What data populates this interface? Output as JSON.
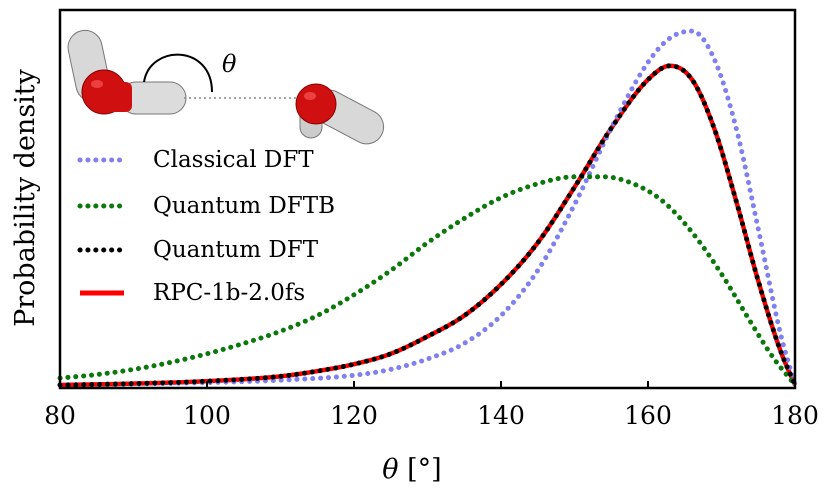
{
  "chart_data": {
    "type": "line",
    "title": "",
    "xlabel": "θ [°]",
    "xlabel_symbol": "θ",
    "xlabel_unit": " [°]",
    "ylabel": "Probability density",
    "xlim": [
      80,
      180
    ],
    "ylim": [
      0,
      1.0
    ],
    "xticks": [
      80,
      100,
      120,
      140,
      160,
      180
    ],
    "yticks_shown": false,
    "legend_position": "left",
    "inset_label": "θ",
    "series": [
      {
        "name": "Classical DFT",
        "style": "dotted",
        "color": "#8080f0",
        "x": [
          80,
          90,
          100,
          110,
          120,
          125,
          130,
          135,
          140,
          145,
          150,
          155,
          160,
          163,
          166,
          169,
          172,
          175,
          178,
          180
        ],
        "y": [
          0.0,
          0.003,
          0.007,
          0.014,
          0.028,
          0.045,
          0.075,
          0.12,
          0.2,
          0.33,
          0.52,
          0.74,
          0.93,
          1.0,
          1.02,
          0.94,
          0.74,
          0.45,
          0.15,
          0.0
        ]
      },
      {
        "name": "Quantum DFTB",
        "style": "dotted",
        "color": "#0a780a",
        "x": [
          80,
          85,
          90,
          95,
          100,
          105,
          110,
          115,
          120,
          125,
          130,
          135,
          140,
          145,
          150,
          154,
          158,
          162,
          166,
          170,
          174,
          177,
          180
        ],
        "y": [
          0.02,
          0.03,
          0.045,
          0.065,
          0.09,
          0.12,
          0.155,
          0.2,
          0.26,
          0.33,
          0.41,
          0.48,
          0.54,
          0.58,
          0.6,
          0.6,
          0.58,
          0.53,
          0.44,
          0.32,
          0.18,
          0.08,
          0.0
        ]
      },
      {
        "name": "Quantum DFT",
        "style": "dotted",
        "color": "#000000",
        "x": [
          80,
          90,
          100,
          110,
          115,
          120,
          125,
          130,
          135,
          140,
          145,
          150,
          155,
          160,
          163,
          166,
          169,
          172,
          175,
          178,
          180
        ],
        "y": [
          0.0,
          0.004,
          0.011,
          0.025,
          0.04,
          0.06,
          0.09,
          0.14,
          0.2,
          0.29,
          0.41,
          0.57,
          0.74,
          0.88,
          0.92,
          0.88,
          0.74,
          0.53,
          0.3,
          0.1,
          0.0
        ]
      },
      {
        "name": "RPC-1b-2.0fs",
        "style": "solid",
        "color": "#ff0000",
        "x": [
          80,
          90,
          100,
          110,
          115,
          120,
          125,
          130,
          135,
          140,
          145,
          150,
          155,
          160,
          163,
          166,
          169,
          172,
          175,
          178,
          180
        ],
        "y": [
          0.0,
          0.004,
          0.011,
          0.025,
          0.04,
          0.06,
          0.09,
          0.14,
          0.2,
          0.29,
          0.41,
          0.57,
          0.74,
          0.88,
          0.92,
          0.88,
          0.74,
          0.53,
          0.3,
          0.1,
          0.0
        ]
      }
    ]
  }
}
